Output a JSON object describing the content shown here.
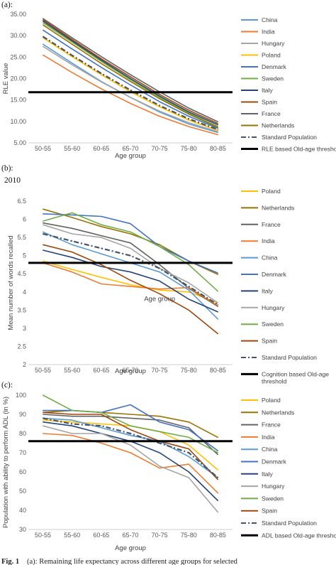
{
  "categories": [
    "50-55",
    "55-60",
    "60-65",
    "65-70",
    "70-75",
    "75-80",
    "80-85"
  ],
  "caption": {
    "bold": "Fig. 1",
    "rest": "(a): Remaining life expectancy across different age groups for selected"
  },
  "colors": {
    "China": "#5b9bd5",
    "India": "#ed7d31",
    "Hungary": "#a5a5a5",
    "Poland": "#ffc000",
    "Denmark": "#4472c4",
    "Sweden": "#70ad47",
    "Italy": "#264478",
    "Spain": "#9e480e",
    "France": "#636363",
    "Netherlands": "#997300",
    "Standard Population": "#44546a",
    "threshold": "#000000"
  },
  "chart_data": [
    {
      "type": "line",
      "panel_label": "(a):",
      "title": "",
      "xlabel": "Age group",
      "ylabel": "RLE value",
      "ylim": [
        5,
        35
      ],
      "yticks": [
        "5.00",
        "10.00",
        "15.00",
        "20.00",
        "25.00",
        "30.00",
        "35.00"
      ],
      "categories": [
        "50-55",
        "55-60",
        "60-65",
        "65-70",
        "70-75",
        "75-80",
        "80-85"
      ],
      "legend_position": "right",
      "series": [
        {
          "name": "China",
          "values": [
            28.0,
            23.6,
            19.3,
            15.6,
            12.2,
            9.4,
            7.4
          ]
        },
        {
          "name": "India",
          "values": [
            25.5,
            21.4,
            17.6,
            14.2,
            11.2,
            8.8,
            6.9
          ]
        },
        {
          "name": "Hungary",
          "values": [
            27.5,
            23.2,
            19.2,
            15.6,
            12.4,
            9.7,
            7.6
          ]
        },
        {
          "name": "Poland",
          "values": [
            29.5,
            25.1,
            20.9,
            16.9,
            13.4,
            10.3,
            7.9
          ]
        },
        {
          "name": "Denmark",
          "values": [
            31.3,
            26.9,
            22.6,
            18.5,
            14.6,
            11.2,
            8.4
          ]
        },
        {
          "name": "Sweden",
          "values": [
            33.0,
            28.5,
            24.0,
            19.7,
            15.6,
            11.9,
            8.8
          ]
        },
        {
          "name": "Italy",
          "values": [
            33.4,
            28.8,
            24.3,
            20.0,
            15.9,
            12.2,
            9.2
          ]
        },
        {
          "name": "Spain",
          "values": [
            33.7,
            29.1,
            24.6,
            20.4,
            16.3,
            12.6,
            9.5
          ]
        },
        {
          "name": "France",
          "values": [
            34.0,
            29.5,
            25.1,
            20.9,
            16.9,
            13.1,
            9.9
          ]
        },
        {
          "name": "Netherlands",
          "values": [
            32.5,
            28.0,
            23.5,
            19.3,
            15.3,
            11.7,
            8.6
          ]
        },
        {
          "name": "Standard Population",
          "values": [
            29.8,
            25.4,
            21.2,
            17.3,
            13.7,
            10.6,
            8.1
          ],
          "dashed": true
        },
        {
          "name": "RLE based Old-age threshold",
          "values": [
            16.8,
            16.8,
            16.8,
            16.8,
            16.8,
            16.8,
            16.8
          ],
          "threshold": true
        }
      ]
    },
    {
      "type": "line",
      "panel_label": "(b):",
      "title": "2010",
      "xlabel": "Age group",
      "ylabel": "Mean number of words recalled",
      "ylim": [
        2,
        6.5
      ],
      "yticks": [
        "2",
        "2.5",
        "3",
        "3.5",
        "4",
        "4.5",
        "5",
        "5.5",
        "6",
        "6.5"
      ],
      "categories": [
        "50-55",
        "55-60",
        "60-65",
        "65-70",
        "70-75",
        "75-80",
        "80-85"
      ],
      "legend_position": "right",
      "series": [
        {
          "name": "Poland",
          "values": [
            4.85,
            4.62,
            4.4,
            4.2,
            4.05,
            4.0,
            3.7
          ]
        },
        {
          "name": "Netherlands",
          "values": [
            6.28,
            6.05,
            5.8,
            5.6,
            5.3,
            4.85,
            4.48
          ]
        },
        {
          "name": "France",
          "values": [
            5.9,
            5.75,
            5.55,
            5.35,
            4.75,
            4.1,
            3.6
          ]
        },
        {
          "name": "India",
          "values": [
            4.8,
            4.55,
            4.22,
            4.15,
            4.08,
            4.12,
            3.62
          ]
        },
        {
          "name": "China",
          "values": [
            5.65,
            5.3,
            5.05,
            4.8,
            4.55,
            4.05,
            3.25
          ]
        },
        {
          "name": "Denmark",
          "values": [
            6.15,
            6.12,
            6.08,
            5.88,
            5.25,
            4.85,
            4.52
          ]
        },
        {
          "name": "Italy",
          "values": [
            5.15,
            4.95,
            4.7,
            4.55,
            4.3,
            3.8,
            3.45
          ]
        },
        {
          "name": "Hungary",
          "values": [
            5.85,
            5.6,
            5.5,
            5.2,
            4.65,
            4.25,
            3.7
          ]
        },
        {
          "name": "Sweden",
          "values": [
            5.95,
            6.18,
            5.85,
            5.65,
            5.25,
            4.75,
            4.02
          ]
        },
        {
          "name": "Spain",
          "values": [
            5.3,
            5.1,
            4.75,
            4.32,
            3.95,
            3.5,
            2.85
          ]
        },
        {
          "name": "Standard Population",
          "values": [
            5.6,
            5.4,
            5.2,
            5.0,
            4.65,
            4.15,
            3.65
          ],
          "dashed": true
        },
        {
          "name": "Cognition based Old-age threshold",
          "values": [
            4.8,
            4.8,
            4.8,
            4.8,
            4.8,
            4.8,
            4.8
          ],
          "threshold": true
        }
      ],
      "annotations": [
        {
          "text": "Age group",
          "x": "70-75",
          "y": 3.75
        }
      ]
    },
    {
      "type": "line",
      "panel_label": "(c):",
      "title": "",
      "xlabel": "Age group",
      "ylabel": "Population with ability to perform ADL (in %)",
      "ylim": [
        30,
        100
      ],
      "yticks": [
        "30",
        "40",
        "50",
        "60",
        "70",
        "80",
        "90",
        "100"
      ],
      "categories": [
        "50-55",
        "55-60",
        "60-65",
        "65-70",
        "70-75",
        "75-80",
        "80-85"
      ],
      "legend_position": "right",
      "series": [
        {
          "name": "Poland",
          "values": [
            87,
            86,
            85,
            84,
            81,
            74,
            61
          ]
        },
        {
          "name": "Netherlands",
          "values": [
            91,
            92,
            91,
            90,
            89,
            86,
            78
          ]
        },
        {
          "name": "France",
          "values": [
            90,
            89,
            89,
            88,
            87,
            83,
            69
          ]
        },
        {
          "name": "India",
          "values": [
            80,
            79,
            75,
            70,
            62,
            64,
            49
          ]
        },
        {
          "name": "China",
          "values": [
            88,
            87,
            83,
            79,
            76,
            68,
            57
          ]
        },
        {
          "name": "Denmark",
          "values": [
            92,
            92,
            91,
            95,
            86,
            82,
            71
          ]
        },
        {
          "name": "Italy",
          "values": [
            86,
            84,
            80,
            76,
            70,
            60,
            45
          ]
        },
        {
          "name": "Hungary",
          "values": [
            84,
            80,
            80,
            74,
            63,
            57,
            39
          ]
        },
        {
          "name": "Sweden",
          "values": [
            100,
            92,
            91,
            84,
            81,
            78,
            70
          ]
        },
        {
          "name": "Spain",
          "values": [
            91,
            90,
            90,
            82,
            76,
            72,
            56
          ]
        },
        {
          "name": "Standard Population",
          "values": [
            88,
            85,
            84,
            80,
            75,
            70,
            57
          ],
          "dashed": true
        },
        {
          "name": "ADL based Old-age threshold",
          "values": [
            76,
            76,
            76,
            76,
            76,
            76,
            76
          ],
          "threshold": true
        }
      ]
    }
  ]
}
